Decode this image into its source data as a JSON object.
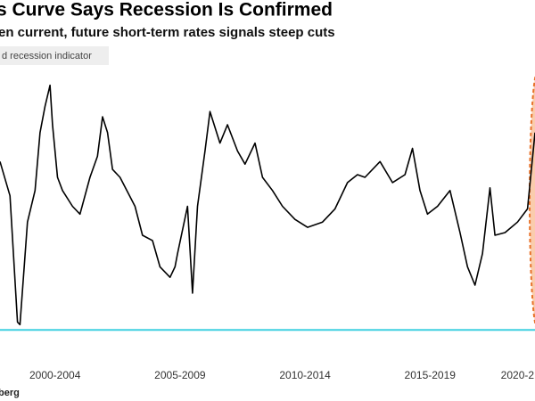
{
  "chart_data": {
    "type": "line",
    "title": "s Curve Says Recession Is Confirmed",
    "subtitle": "en current, future short-term rates signals steep cuts",
    "source": "berg",
    "legend_label": "d recession indicator",
    "reference_line": {
      "value": 0,
      "color": "#3fd0e0"
    },
    "xlim": [
      2000.3,
      2021.7
    ],
    "ylim": [
      -5,
      100
    ],
    "xticks": [
      {
        "value": 2002.5,
        "label": "2000-2004"
      },
      {
        "value": 2007.5,
        "label": "2005-2009"
      },
      {
        "value": 2012.5,
        "label": "2010-2014"
      },
      {
        "value": 2017.5,
        "label": "2015-2019"
      },
      {
        "value": 2021.0,
        "label": "2020-2"
      }
    ],
    "x": [
      2000.3,
      2000.7,
      2001.0,
      2001.1,
      2001.4,
      2001.7,
      2001.9,
      2002.1,
      2002.3,
      2002.4,
      2002.6,
      2002.8,
      2003.2,
      2003.5,
      2003.9,
      2004.2,
      2004.4,
      2004.6,
      2004.8,
      2005.1,
      2005.7,
      2006.0,
      2006.4,
      2006.7,
      2007.1,
      2007.3,
      2007.4,
      2007.8,
      2008.0,
      2008.2,
      2008.5,
      2008.7,
      2009.1,
      2009.4,
      2009.8,
      2010.1,
      2010.5,
      2010.8,
      2011.2,
      2011.6,
      2012.1,
      2012.6,
      2013.2,
      2013.7,
      2014.2,
      2014.6,
      2014.9,
      2015.5,
      2016.0,
      2016.5,
      2016.8,
      2017.1,
      2017.4,
      2017.8,
      2018.3,
      2018.7,
      2019.0,
      2019.3,
      2019.6,
      2019.9,
      2020.1,
      2020.5,
      2021.0,
      2021.4,
      2021.7
    ],
    "series": [
      {
        "color": "#000000",
        "values": [
          64,
          51,
          3,
          2,
          41,
          53,
          75,
          85,
          93,
          78,
          58,
          53,
          47,
          44,
          58,
          66,
          81,
          75,
          61,
          58,
          47,
          36,
          34,
          24,
          20,
          24,
          29,
          47,
          14,
          47,
          68,
          83,
          71,
          78,
          68,
          63,
          71,
          58,
          53,
          47,
          42,
          39,
          41,
          46,
          56,
          59,
          58,
          64,
          56,
          59,
          69,
          53,
          44,
          47,
          53,
          37,
          24,
          17,
          29,
          54,
          36,
          37,
          41,
          46,
          75
        ]
      }
    ]
  }
}
